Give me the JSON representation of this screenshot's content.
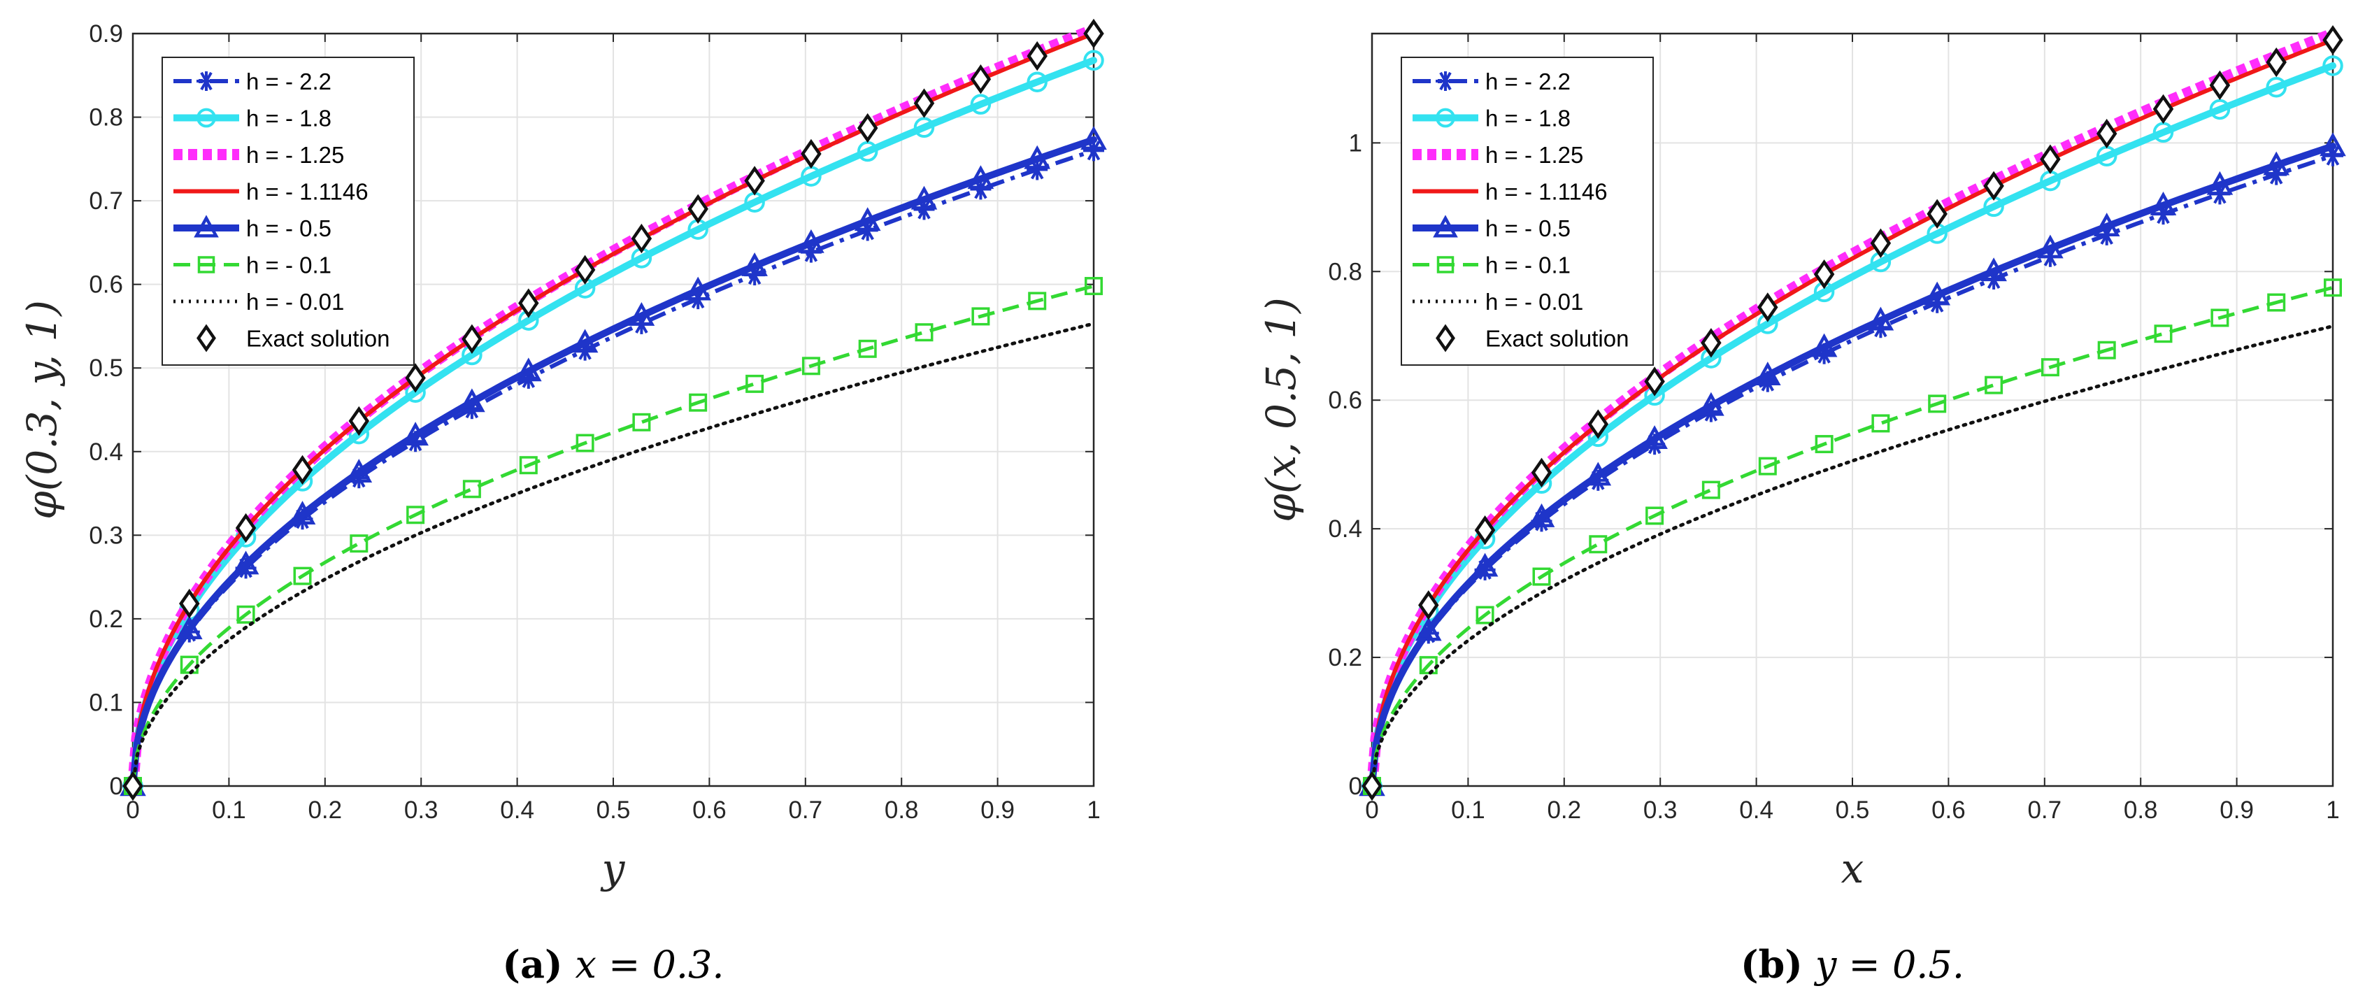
{
  "chart_data": [
    {
      "type": "line",
      "title": "",
      "xlabel": "y",
      "ylabel": "φ(0.3, y, 1)",
      "xlim": [
        0,
        1
      ],
      "ylim": [
        0,
        0.9
      ],
      "xticks": [
        "0",
        "0.1",
        "0.2",
        "0.3",
        "0.4",
        "0.5",
        "0.6",
        "0.7",
        "0.8",
        "0.9",
        "1"
      ],
      "yticks": [
        "0",
        "0.1",
        "0.2",
        "0.3",
        "0.4",
        "0.5",
        "0.6",
        "0.7",
        "0.8",
        "0.9"
      ],
      "grid": true,
      "legend_position": "top-left",
      "marker_x": [
        0,
        0.0588,
        0.1176,
        0.1765,
        0.2353,
        0.2941,
        0.3529,
        0.4118,
        0.4706,
        0.5294,
        0.5882,
        0.6471,
        0.7059,
        0.7647,
        0.8235,
        0.8824,
        0.9412,
        1.0
      ],
      "series": [
        {
          "name": "h = - 2.2",
          "color": "#1f35c9",
          "style": "dashdot",
          "marker": "asterisk",
          "endpoint": 0.76
        },
        {
          "name": "h = - 1.8",
          "color": "#33e2f0",
          "style": "solid-thick",
          "marker": "circle",
          "endpoint": 0.868
        },
        {
          "name": "h = - 1.25",
          "color": "#ff2dfb",
          "style": "dotted-thick",
          "marker": "none",
          "endpoint": 0.905
        },
        {
          "name": "h = - 1.1146",
          "color": "#f01818",
          "style": "solid",
          "marker": "none",
          "endpoint": 0.9
        },
        {
          "name": "h = - 0.5",
          "color": "#1f35c9",
          "style": "solid-thick",
          "marker": "triangle",
          "endpoint": 0.773
        },
        {
          "name": "h = - 0.1",
          "color": "#33d933",
          "style": "dashed",
          "marker": "square",
          "endpoint": 0.598
        },
        {
          "name": "h = - 0.01",
          "color": "#111111",
          "style": "dotted",
          "marker": "none",
          "endpoint": 0.553
        },
        {
          "name": "Exact solution",
          "color": "#111111",
          "style": "markers-only",
          "marker": "diamond",
          "endpoint": 0.9
        }
      ],
      "caption_label": "(a)",
      "caption_text": "x = 0.3."
    },
    {
      "type": "line",
      "title": "",
      "xlabel": "x",
      "ylabel": "φ(x, 0.5, 1)",
      "xlim": [
        0,
        1
      ],
      "ylim": [
        0,
        1.17
      ],
      "xticks": [
        "0",
        "0.1",
        "0.2",
        "0.3",
        "0.4",
        "0.5",
        "0.6",
        "0.7",
        "0.8",
        "0.9",
        "1"
      ],
      "yticks": [
        "0",
        "0.2",
        "0.4",
        "0.6",
        "0.8",
        "1"
      ],
      "grid": true,
      "legend_position": "top-left",
      "marker_x": [
        0,
        0.0588,
        0.1176,
        0.1765,
        0.2353,
        0.2941,
        0.3529,
        0.4118,
        0.4706,
        0.5294,
        0.5882,
        0.6471,
        0.7059,
        0.7647,
        0.8235,
        0.8824,
        0.9412,
        1.0
      ],
      "series": [
        {
          "name": "h = - 2.2",
          "color": "#1f35c9",
          "style": "dashdot",
          "marker": "asterisk",
          "endpoint": 0.98
        },
        {
          "name": "h = - 1.8",
          "color": "#33e2f0",
          "style": "solid-thick",
          "marker": "circle",
          "endpoint": 1.12
        },
        {
          "name": "h = - 1.25",
          "color": "#ff2dfb",
          "style": "dotted-thick",
          "marker": "none",
          "endpoint": 1.17
        },
        {
          "name": "h = - 1.1146",
          "color": "#f01818",
          "style": "solid",
          "marker": "none",
          "endpoint": 1.16
        },
        {
          "name": "h = - 0.5",
          "color": "#1f35c9",
          "style": "solid-thick",
          "marker": "triangle",
          "endpoint": 0.995
        },
        {
          "name": "h = - 0.1",
          "color": "#33d933",
          "style": "dashed",
          "marker": "square",
          "endpoint": 0.775
        },
        {
          "name": "h = - 0.01",
          "color": "#111111",
          "style": "dotted",
          "marker": "none",
          "endpoint": 0.715
        },
        {
          "name": "Exact solution",
          "color": "#111111",
          "style": "markers-only",
          "marker": "diamond",
          "endpoint": 1.16
        }
      ],
      "caption_label": "(b)",
      "caption_text": "y = 0.5."
    }
  ]
}
